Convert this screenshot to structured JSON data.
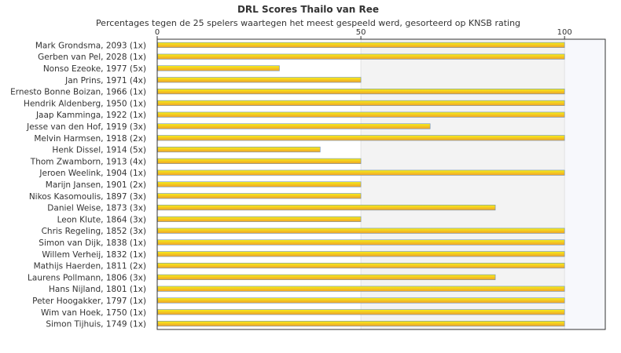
{
  "chart_data": {
    "type": "bar",
    "orientation": "horizontal",
    "title": "DRL Scores Thailo van Ree",
    "subtitle": "Percentages tegen de 25 spelers waartegen het meest gespeeld werd, gesorteerd op KNSB rating",
    "categories": [
      "Mark Grondsma, 2093 (1x)",
      "Gerben van Pel, 2028 (1x)",
      "Nonso Ezeoke, 1977 (5x)",
      "Jan Prins, 1971 (4x)",
      "Ernesto Bonne Boizan, 1966 (1x)",
      "Hendrik Aldenberg, 1950 (1x)",
      "Jaap Kamminga, 1922 (1x)",
      "Jesse van den Hof, 1919 (3x)",
      "Melvin Harmsen, 1918 (2x)",
      "Henk Dissel, 1914 (5x)",
      "Thom Zwamborn, 1913 (4x)",
      "Jeroen Weelink, 1904 (1x)",
      "Marijn Jansen, 1901 (2x)",
      "Nikos Kasomoulis, 1897 (3x)",
      "Daniel Weise, 1873 (3x)",
      "Leon Klute, 1864 (3x)",
      "Chris Regeling, 1852 (3x)",
      "Simon van Dijk, 1838 (1x)",
      "Willem Verheij, 1832 (1x)",
      "Mathijs Haerden, 1811 (2x)",
      "Laurens Pollmann, 1806 (3x)",
      "Hans Nijland, 1801 (1x)",
      "Peter Hoogakker, 1797 (1x)",
      "Wim van Hoek, 1750 (1x)",
      "Simon Tijhuis, 1749 (1x)"
    ],
    "values": [
      100,
      100,
      30,
      50,
      100,
      100,
      100,
      67,
      100,
      40,
      50,
      100,
      50,
      50,
      83,
      50,
      100,
      100,
      100,
      100,
      83,
      100,
      100,
      100,
      100
    ],
    "xlim": [
      0,
      110
    ],
    "xticks": [
      "0",
      "50",
      "100"
    ],
    "xtick_values": [
      0,
      50,
      100
    ],
    "axis_position": "top",
    "grid": true,
    "colors": {
      "bar_fill_start": "#f6ef1a",
      "bar_fill_end": "#f0a22a",
      "bar_stroke": "#6d8fb5",
      "band_shade": "#f3f3f3",
      "band_right": "#f7f8fc",
      "axis": "#333333"
    }
  }
}
